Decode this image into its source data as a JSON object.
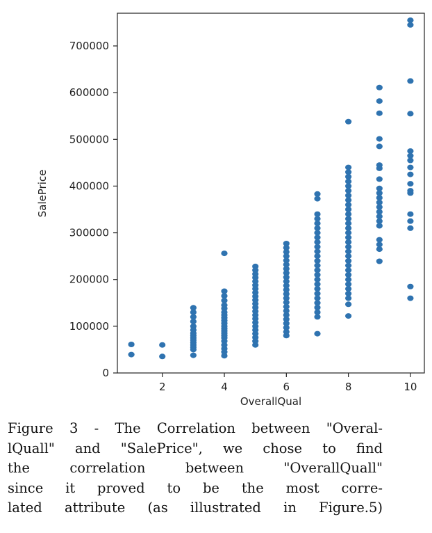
{
  "chart_data": {
    "type": "scatter",
    "title": "",
    "xlabel": "OverallQual",
    "ylabel": "SalePrice",
    "xlim": [
      0.55,
      10.45
    ],
    "ylim": [
      0,
      770000
    ],
    "x_ticks": [
      "2",
      "4",
      "6",
      "8",
      "10"
    ],
    "y_ticks": [
      "0",
      "100000",
      "200000",
      "300000",
      "400000",
      "500000",
      "600000",
      "700000"
    ],
    "marker_color": "#2f73b0",
    "grid": false,
    "points": [
      [
        1,
        61000
      ],
      [
        1,
        39300
      ],
      [
        2,
        60000
      ],
      [
        2,
        35300
      ],
      [
        3,
        139600
      ],
      [
        3,
        130000
      ],
      [
        3,
        120000
      ],
      [
        3,
        110000
      ],
      [
        3,
        100000
      ],
      [
        3,
        92000
      ],
      [
        3,
        85000
      ],
      [
        3,
        80000
      ],
      [
        3,
        75000
      ],
      [
        3,
        70000
      ],
      [
        3,
        65000
      ],
      [
        3,
        60000
      ],
      [
        3,
        55000
      ],
      [
        3,
        50000
      ],
      [
        3,
        37900
      ],
      [
        4,
        256000
      ],
      [
        4,
        175000
      ],
      [
        4,
        165000
      ],
      [
        4,
        155000
      ],
      [
        4,
        145000
      ],
      [
        4,
        138000
      ],
      [
        4,
        130000
      ],
      [
        4,
        124000
      ],
      [
        4,
        118000
      ],
      [
        4,
        112000
      ],
      [
        4,
        106000
      ],
      [
        4,
        100000
      ],
      [
        4,
        95000
      ],
      [
        4,
        90000
      ],
      [
        4,
        85000
      ],
      [
        4,
        80000
      ],
      [
        4,
        75000
      ],
      [
        4,
        68000
      ],
      [
        4,
        60000
      ],
      [
        4,
        52000
      ],
      [
        4,
        45000
      ],
      [
        4,
        37000
      ],
      [
        5,
        228000
      ],
      [
        5,
        220000
      ],
      [
        5,
        212000
      ],
      [
        5,
        204000
      ],
      [
        5,
        196000
      ],
      [
        5,
        188000
      ],
      [
        5,
        180000
      ],
      [
        5,
        172000
      ],
      [
        5,
        164000
      ],
      [
        5,
        156000
      ],
      [
        5,
        148000
      ],
      [
        5,
        140000
      ],
      [
        5,
        132000
      ],
      [
        5,
        124000
      ],
      [
        5,
        116000
      ],
      [
        5,
        108000
      ],
      [
        5,
        100000
      ],
      [
        5,
        92000
      ],
      [
        5,
        84000
      ],
      [
        5,
        76000
      ],
      [
        5,
        68000
      ],
      [
        5,
        60000
      ],
      [
        6,
        277000
      ],
      [
        6,
        268000
      ],
      [
        6,
        259000
      ],
      [
        6,
        250000
      ],
      [
        6,
        241000
      ],
      [
        6,
        232000
      ],
      [
        6,
        223000
      ],
      [
        6,
        214000
      ],
      [
        6,
        205000
      ],
      [
        6,
        196000
      ],
      [
        6,
        187000
      ],
      [
        6,
        178000
      ],
      [
        6,
        169000
      ],
      [
        6,
        160000
      ],
      [
        6,
        151000
      ],
      [
        6,
        142000
      ],
      [
        6,
        133000
      ],
      [
        6,
        124000
      ],
      [
        6,
        115000
      ],
      [
        6,
        106000
      ],
      [
        6,
        97000
      ],
      [
        6,
        88000
      ],
      [
        6,
        80000
      ],
      [
        7,
        383000
      ],
      [
        7,
        373000
      ],
      [
        7,
        340000
      ],
      [
        7,
        330000
      ],
      [
        7,
        320000
      ],
      [
        7,
        310000
      ],
      [
        7,
        300000
      ],
      [
        7,
        290000
      ],
      [
        7,
        280000
      ],
      [
        7,
        270000
      ],
      [
        7,
        260000
      ],
      [
        7,
        250000
      ],
      [
        7,
        240000
      ],
      [
        7,
        230000
      ],
      [
        7,
        220000
      ],
      [
        7,
        210000
      ],
      [
        7,
        200000
      ],
      [
        7,
        190000
      ],
      [
        7,
        180000
      ],
      [
        7,
        170000
      ],
      [
        7,
        160000
      ],
      [
        7,
        150000
      ],
      [
        7,
        140000
      ],
      [
        7,
        130000
      ],
      [
        7,
        120000
      ],
      [
        7,
        84000
      ],
      [
        8,
        538000
      ],
      [
        8,
        440000
      ],
      [
        8,
        430000
      ],
      [
        8,
        420000
      ],
      [
        8,
        410000
      ],
      [
        8,
        400000
      ],
      [
        8,
        390000
      ],
      [
        8,
        380000
      ],
      [
        8,
        370000
      ],
      [
        8,
        360000
      ],
      [
        8,
        350000
      ],
      [
        8,
        340000
      ],
      [
        8,
        330000
      ],
      [
        8,
        320000
      ],
      [
        8,
        310000
      ],
      [
        8,
        300000
      ],
      [
        8,
        290000
      ],
      [
        8,
        280000
      ],
      [
        8,
        270000
      ],
      [
        8,
        260000
      ],
      [
        8,
        250000
      ],
      [
        8,
        240000
      ],
      [
        8,
        230000
      ],
      [
        8,
        220000
      ],
      [
        8,
        210000
      ],
      [
        8,
        200000
      ],
      [
        8,
        190000
      ],
      [
        8,
        180000
      ],
      [
        8,
        170000
      ],
      [
        8,
        160000
      ],
      [
        8,
        147000
      ],
      [
        8,
        122000
      ],
      [
        9,
        611000
      ],
      [
        9,
        582000
      ],
      [
        9,
        556000
      ],
      [
        9,
        501000
      ],
      [
        9,
        485000
      ],
      [
        9,
        445000
      ],
      [
        9,
        438000
      ],
      [
        9,
        415000
      ],
      [
        9,
        395000
      ],
      [
        9,
        385000
      ],
      [
        9,
        375000
      ],
      [
        9,
        365000
      ],
      [
        9,
        355000
      ],
      [
        9,
        345000
      ],
      [
        9,
        335000
      ],
      [
        9,
        325000
      ],
      [
        9,
        315000
      ],
      [
        9,
        285000
      ],
      [
        9,
        275000
      ],
      [
        9,
        265000
      ],
      [
        9,
        239000
      ],
      [
        10,
        755000
      ],
      [
        10,
        745000
      ],
      [
        10,
        625000
      ],
      [
        10,
        555000
      ],
      [
        10,
        475000
      ],
      [
        10,
        465000
      ],
      [
        10,
        455000
      ],
      [
        10,
        440000
      ],
      [
        10,
        425000
      ],
      [
        10,
        405000
      ],
      [
        10,
        390000
      ],
      [
        10,
        385000
      ],
      [
        10,
        340000
      ],
      [
        10,
        325000
      ],
      [
        10,
        310000
      ],
      [
        10,
        185000
      ],
      [
        10,
        160000
      ]
    ]
  },
  "caption": {
    "lines": [
      "Figure 3 - The Correlation between \"Overal-",
      "lQuall\" and \"SalePrice\", we chose to find",
      "the correlation between \"OverallQuall\"",
      "since it proved to be the most corre-",
      "lated attribute (as illustrated in Figure.5)"
    ]
  }
}
